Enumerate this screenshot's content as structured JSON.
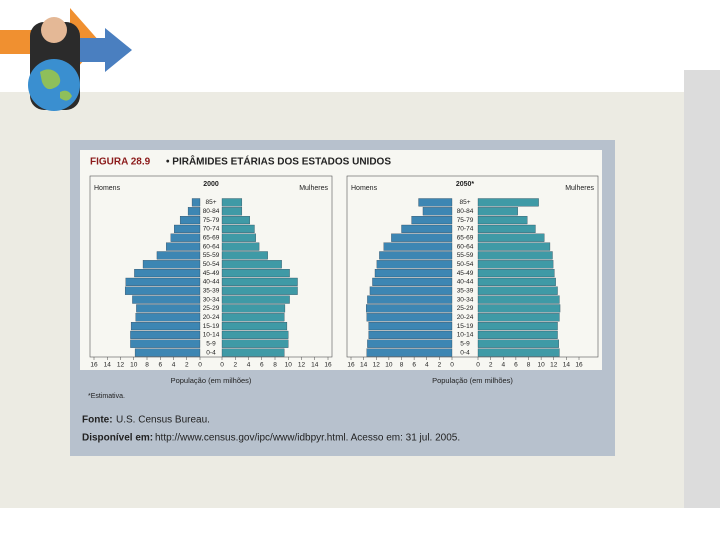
{
  "figure_title_prefix": "FIGURA 28.9",
  "figure_title": "• PIRÂMIDES ETÁRIAS DOS ESTADOS UNIDOS",
  "note": "*Estimativa.",
  "source_label": "Fonte:",
  "source": "U.S. Census Bureau.",
  "available_label": "Disponível em:",
  "available": "http://www.census.gov/ipc/www/idbpyr.html. Acesso em: 31 jul. 2005.",
  "chart_data": [
    {
      "type": "pyramid",
      "title": "2000",
      "x_label": "População (em milhões)",
      "categories": [
        "85+",
        "80-84",
        "75-79",
        "70-74",
        "65-69",
        "60-64",
        "55-59",
        "50-54",
        "45-49",
        "40-44",
        "35-39",
        "30-34",
        "25-29",
        "20-24",
        "15-19",
        "10-14",
        "5-9",
        "0-4"
      ],
      "series": [
        {
          "name": "Homens",
          "color": "#3d86b3",
          "values": [
            1.2,
            1.8,
            3.0,
            3.9,
            4.4,
            5.1,
            6.5,
            8.6,
            9.9,
            11.2,
            11.3,
            10.2,
            9.6,
            9.7,
            10.4,
            10.5,
            10.5,
            9.8
          ]
        },
        {
          "name": "Mulheres",
          "color": "#3f9aa6",
          "values": [
            3.0,
            3.0,
            4.2,
            4.9,
            5.1,
            5.6,
            6.9,
            9.0,
            10.2,
            11.4,
            11.4,
            10.2,
            9.5,
            9.4,
            9.8,
            10.0,
            10.0,
            9.4
          ]
        }
      ],
      "xlim": [
        0,
        16
      ],
      "xticks": [
        0,
        2,
        4,
        6,
        8,
        10,
        12,
        14,
        16
      ]
    },
    {
      "type": "pyramid",
      "title": "2050*",
      "x_label": "População (em milhões)",
      "categories": [
        "85+",
        "80-84",
        "75-79",
        "70-74",
        "65-69",
        "60-64",
        "55-59",
        "50-54",
        "45-49",
        "40-44",
        "35-39",
        "30-34",
        "25-29",
        "20-24",
        "15-19",
        "10-14",
        "5-9",
        "0-4"
      ],
      "series": [
        {
          "name": "Homens",
          "color": "#3d86b3",
          "values": [
            5.3,
            4.6,
            6.4,
            8.0,
            9.6,
            10.8,
            11.5,
            11.9,
            12.2,
            12.6,
            13.0,
            13.4,
            13.6,
            13.5,
            13.2,
            13.2,
            13.4,
            13.5
          ]
        },
        {
          "name": "Mulheres",
          "color": "#3f9aa6",
          "values": [
            9.6,
            6.3,
            7.8,
            9.1,
            10.5,
            11.4,
            11.8,
            11.9,
            12.1,
            12.3,
            12.6,
            12.9,
            13.0,
            12.9,
            12.6,
            12.6,
            12.8,
            12.9
          ]
        }
      ],
      "xlim": [
        0,
        16
      ],
      "xticks": [
        0,
        2,
        4,
        6,
        8,
        10,
        12,
        14,
        16
      ]
    }
  ]
}
